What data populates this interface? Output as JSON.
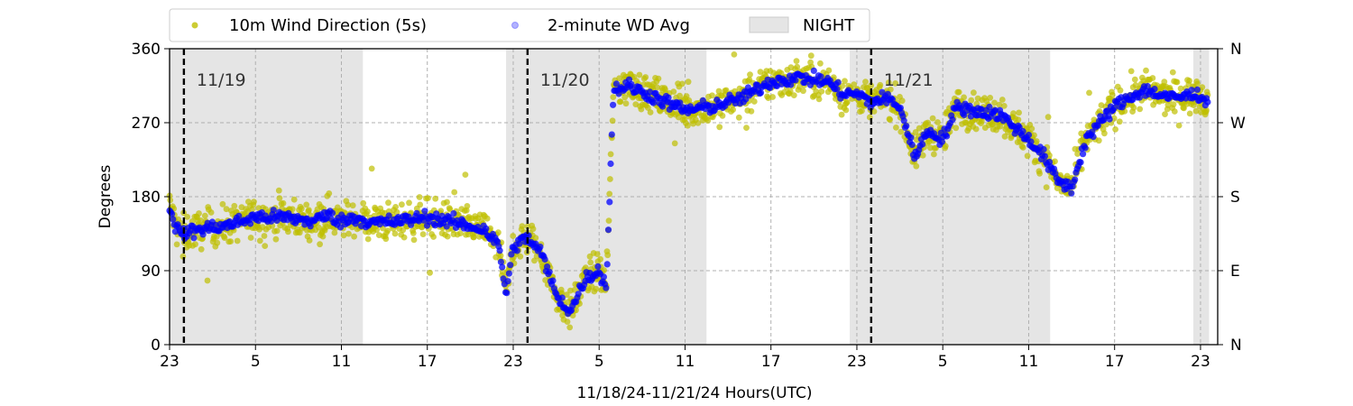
{
  "chart_data": {
    "type": "scatter",
    "xlabel": "11/18/24-11/21/24  Hours(UTC)",
    "ylabel": "Degrees",
    "ylim": [
      0,
      360
    ],
    "yticks": [
      0,
      90,
      180,
      270,
      360
    ],
    "xlim": [
      0,
      73.2
    ],
    "xtick_values": [
      0,
      6,
      12,
      18,
      24,
      30,
      36,
      42,
      48,
      54,
      60,
      66,
      72
    ],
    "xtick_labels": [
      "23",
      "5",
      "11",
      "17",
      "23",
      "5",
      "11",
      "17",
      "23",
      "5",
      "11",
      "17",
      "23"
    ],
    "right_ticks": [
      "N",
      "E",
      "S",
      "W",
      "N"
    ],
    "grid": true,
    "legend": {
      "placement": "top-left (above plot)",
      "entries": [
        "10m Wind Direction (5s)",
        "2-minute WD Avg",
        "NIGHT"
      ]
    },
    "colors": {
      "wind_5s": "#bfbf00",
      "wd_avg": "#0000ff",
      "night": "#e5e5e5",
      "grid": "#b0b0b0"
    },
    "night_periods": [
      [
        0,
        13.5
      ],
      [
        23.5,
        37.5
      ],
      [
        47.5,
        61.5
      ],
      [
        71.5,
        72.6
      ]
    ],
    "day_markers": [
      {
        "x": 1,
        "label": "11/19"
      },
      {
        "x": 25,
        "label": "11/20"
      },
      {
        "x": 49,
        "label": "11/21"
      }
    ],
    "series": [
      {
        "name": "10m Wind Direction (5s)",
        "note": "scatter spread approx +/-30 deg around the 2-minute average",
        "x": [
          0,
          0.5,
          1,
          2,
          4,
          6,
          8,
          10,
          11,
          12,
          13,
          14,
          16,
          18,
          20,
          22,
          23,
          23.5,
          24,
          25,
          26,
          27,
          28,
          29,
          30,
          30.5,
          31,
          32,
          34,
          36,
          38,
          40,
          42,
          44,
          46,
          47,
          48,
          49,
          50,
          51,
          52,
          53,
          54,
          55,
          56,
          58,
          60,
          61,
          62,
          63,
          64,
          66,
          68,
          70,
          72,
          72.5
        ],
        "values": [
          170,
          140,
          135,
          140,
          145,
          155,
          155,
          150,
          158,
          150,
          155,
          148,
          150,
          155,
          148,
          140,
          120,
          60,
          120,
          130,
          110,
          60,
          40,
          80,
          90,
          70,
          310,
          315,
          300,
          285,
          290,
          300,
          320,
          325,
          320,
          305,
          305,
          295,
          300,
          290,
          230,
          260,
          250,
          290,
          285,
          280,
          250,
          230,
          200,
          190,
          250,
          290,
          310,
          300,
          305,
          290
        ]
      },
      {
        "name": "2-minute WD Avg",
        "x": [
          0,
          0.5,
          1,
          2,
          4,
          6,
          8,
          10,
          11,
          12,
          13,
          14,
          16,
          18,
          20,
          22,
          23,
          23.5,
          24,
          25,
          26,
          27,
          28,
          29,
          30,
          30.5,
          31,
          32,
          34,
          36,
          38,
          40,
          42,
          44,
          46,
          47,
          48,
          49,
          50,
          51,
          52,
          53,
          54,
          55,
          56,
          58,
          60,
          61,
          62,
          63,
          64,
          66,
          68,
          70,
          72,
          72.5
        ],
        "values": [
          170,
          140,
          135,
          140,
          145,
          155,
          155,
          150,
          158,
          150,
          155,
          148,
          150,
          155,
          148,
          140,
          120,
          60,
          120,
          130,
          110,
          60,
          40,
          80,
          90,
          70,
          310,
          315,
          300,
          285,
          290,
          300,
          320,
          325,
          320,
          305,
          305,
          295,
          300,
          290,
          230,
          260,
          250,
          290,
          285,
          280,
          250,
          230,
          200,
          190,
          250,
          290,
          310,
          300,
          305,
          290
        ]
      }
    ]
  }
}
